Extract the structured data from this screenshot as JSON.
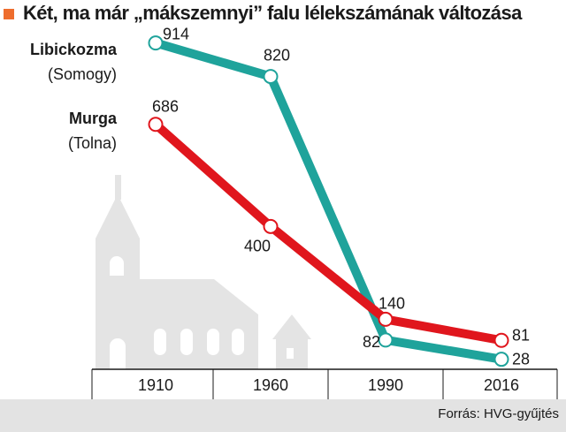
{
  "title": "Két, ma már „mákszemnyi” falu lélekszámának változása",
  "source": "Forrás: HVG-gyűjtés",
  "colors": {
    "accent": "#ee6d2d",
    "libickozma": "#1fa39b",
    "murga": "#e0161d",
    "church": "#e4e4e4",
    "footer": "#e3e3e3"
  },
  "chart_data": {
    "type": "line",
    "categories": [
      "1910",
      "1960",
      "1990",
      "2016"
    ],
    "series": [
      {
        "name": "Libickozma",
        "region": "(Somogy)",
        "values": [
          914,
          820,
          82,
          28
        ],
        "labels": [
          "914",
          "820",
          "82",
          "28"
        ],
        "color": "#1fa39b"
      },
      {
        "name": "Murga",
        "region": "(Tolna)",
        "values": [
          686,
          400,
          140,
          81
        ],
        "labels": [
          "686",
          "400",
          "140",
          "81"
        ],
        "color": "#e0161d"
      }
    ],
    "ylim": [
      0,
      960
    ],
    "grid": false
  }
}
